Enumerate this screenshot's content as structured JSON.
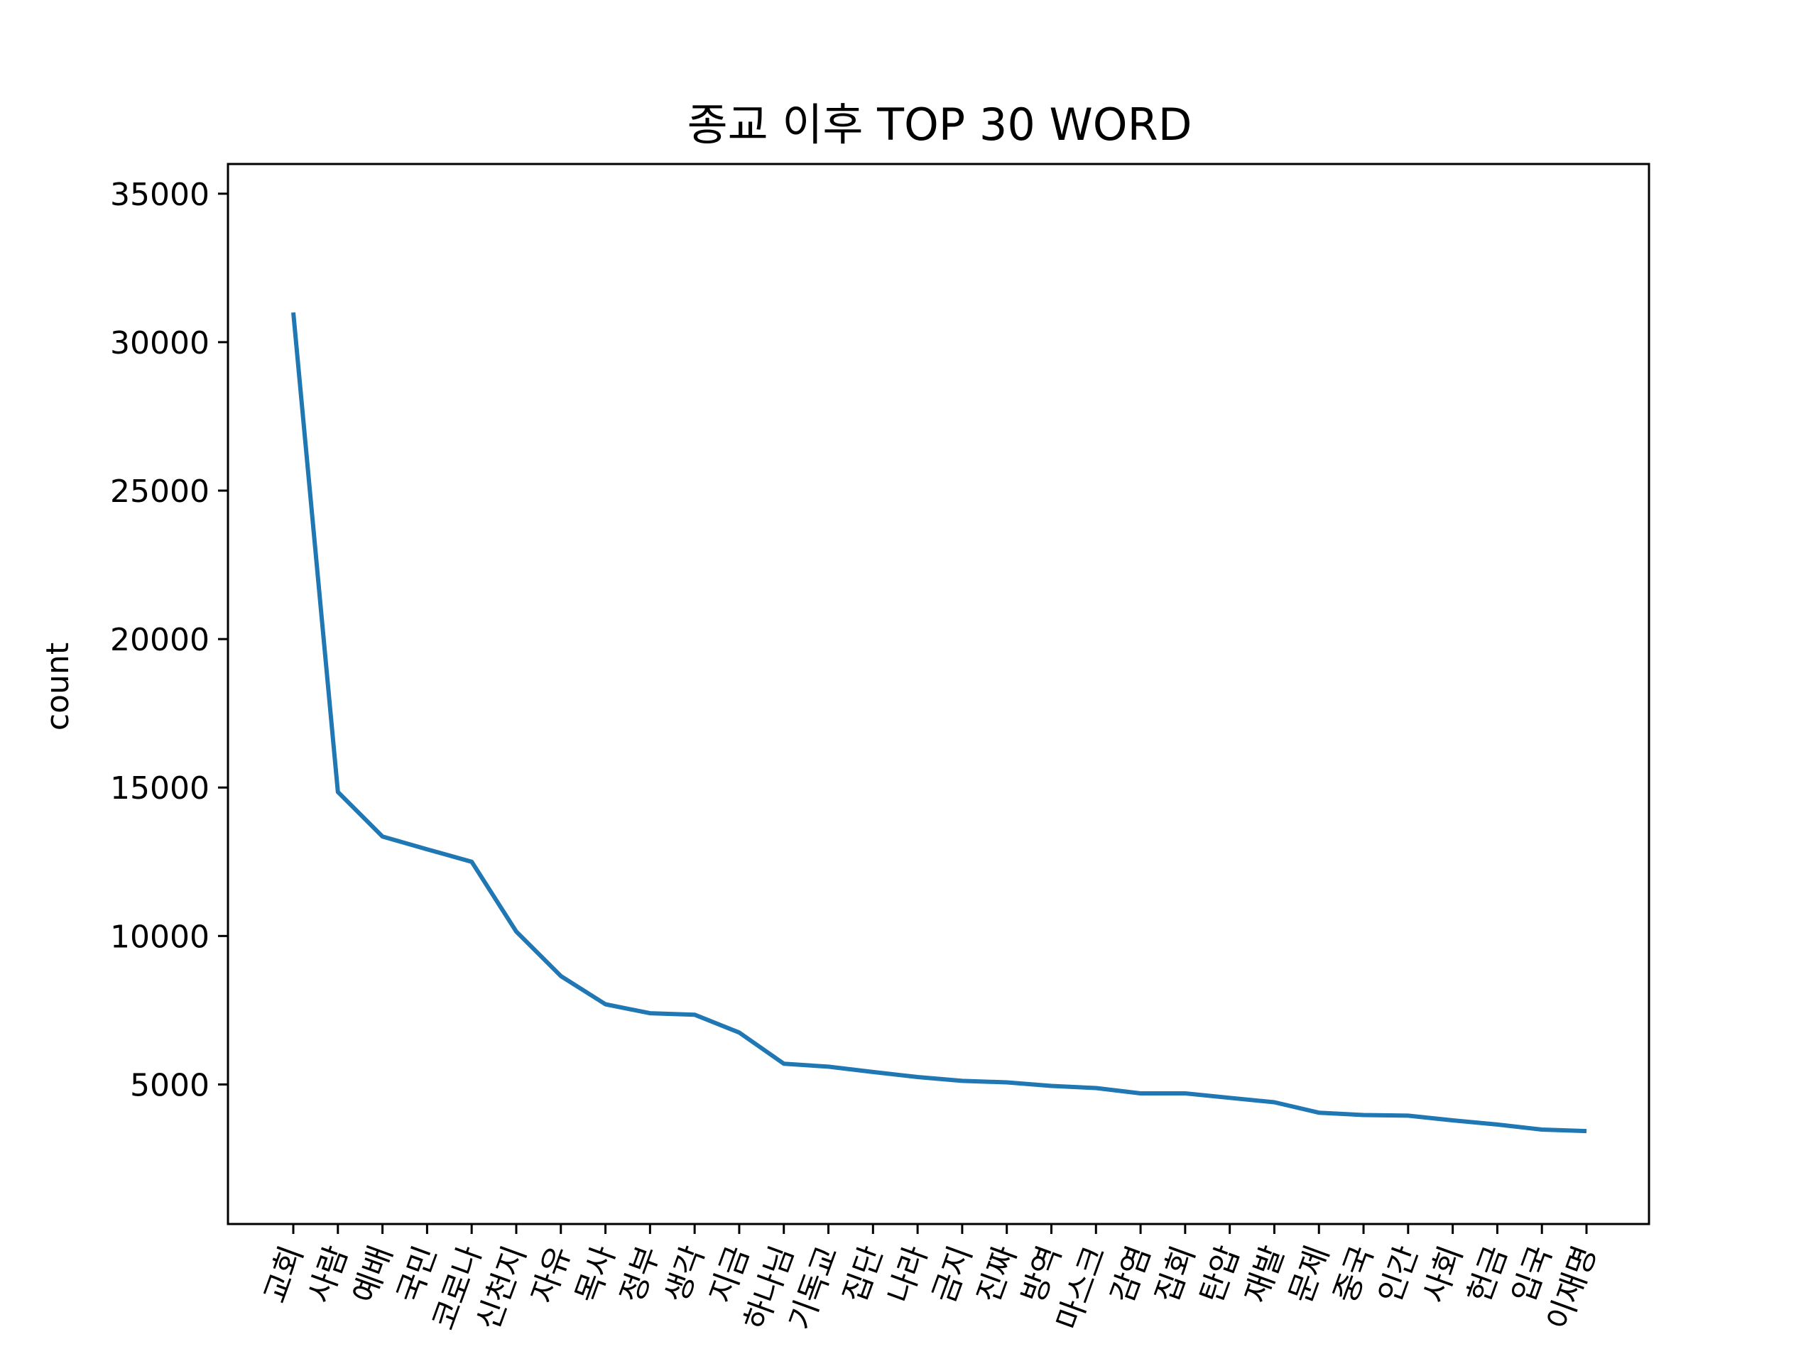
{
  "chart_data": {
    "type": "line",
    "title": "종교 이후 TOP 30 WORD",
    "xlabel": "",
    "ylabel": "count",
    "ylim": [
      300,
      36000
    ],
    "yticks": [
      5000,
      10000,
      15000,
      20000,
      25000,
      30000,
      35000
    ],
    "grid": false,
    "line_color": "#1f77b4",
    "categories": [
      "교회",
      "사람",
      "예배",
      "국민",
      "코로나",
      "신천지",
      "자유",
      "목사",
      "정부",
      "생각",
      "지금",
      "하나님",
      "기독교",
      "집단",
      "나라",
      "금지",
      "진짜",
      "방역",
      "마스크",
      "감염",
      "집회",
      "탄압",
      "재발",
      "문제",
      "중국",
      "인간",
      "사회",
      "헌금",
      "입국",
      "이재명"
    ],
    "series": [
      {
        "values": [
          31000,
          14850,
          13350,
          12920,
          12500,
          10150,
          8650,
          7700,
          7400,
          7350,
          6750,
          5700,
          5600,
          5420,
          5250,
          5120,
          5070,
          4950,
          4880,
          4700,
          4700,
          4550,
          4400,
          4050,
          3970,
          3950,
          3790,
          3650,
          3480,
          3430
        ]
      }
    ]
  }
}
